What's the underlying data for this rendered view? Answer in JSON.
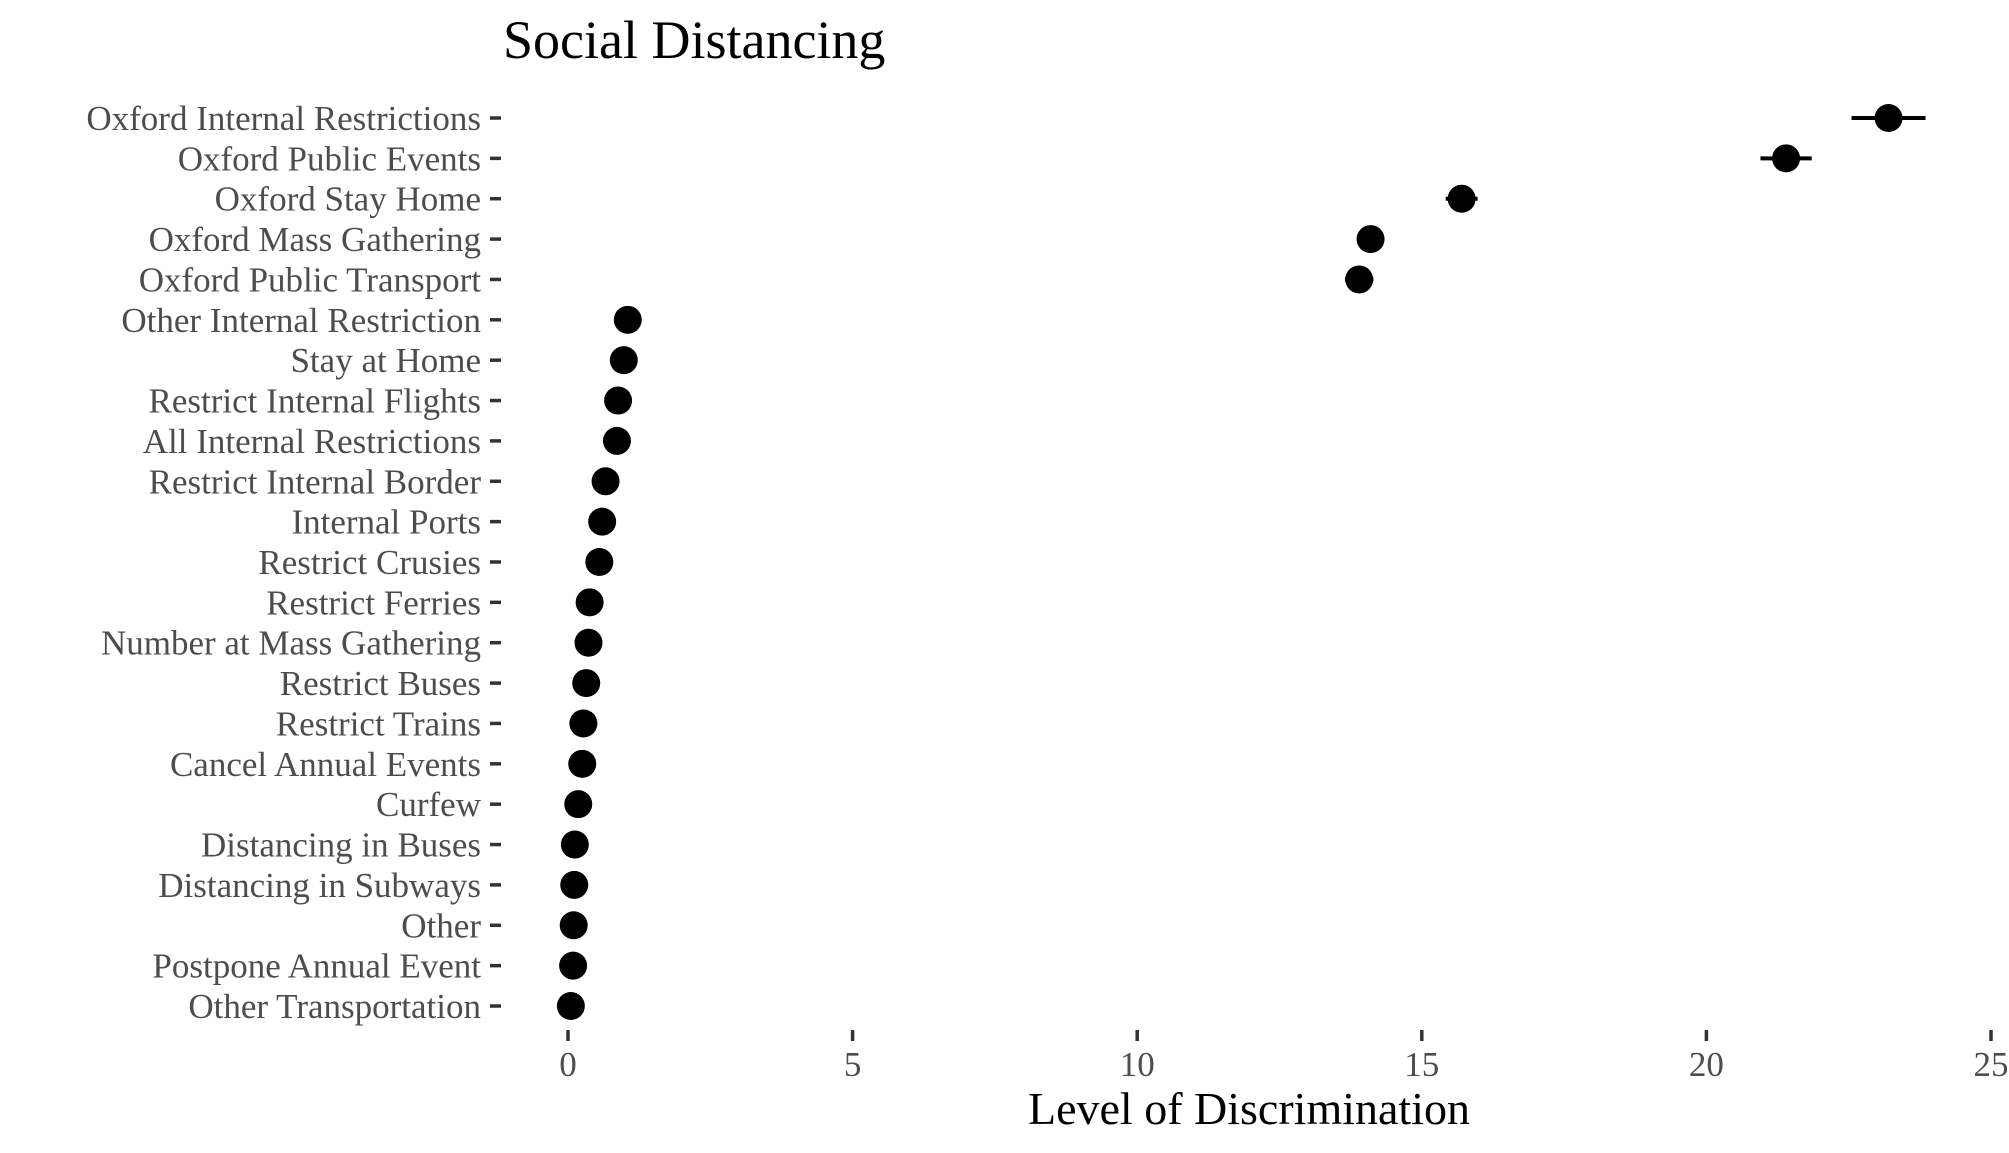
{
  "chart_data": {
    "type": "scatter",
    "title": "Social Distancing",
    "xlabel": "Level of Discrimination",
    "ylabel": "",
    "xlim": [
      0,
      25
    ],
    "x_ticks": [
      0,
      5,
      10,
      15,
      20,
      25
    ],
    "grid": false,
    "legend": "none",
    "colors": {
      "point": "#000000",
      "tick": "#333333",
      "tick_label": "#4d4d4d",
      "title": "#000000"
    },
    "categories": [
      "Oxford Internal Restrictions",
      "Oxford Public Events",
      "Oxford Stay Home",
      "Oxford Mass Gathering",
      "Oxford Public Transport",
      "Other Internal Restriction",
      "Stay at Home",
      "Restrict Internal Flights",
      "All Internal Restrictions",
      "Restrict Internal Border",
      "Internal Ports",
      "Restrict Crusies",
      "Restrict Ferries",
      "Number at Mass Gathering",
      "Restrict Buses",
      "Restrict Trains",
      "Cancel Annual Events",
      "Curfew",
      "Distancing in Buses",
      "Distancing in Subways",
      "Other",
      "Postpone Annual Event",
      "Other Transportation"
    ],
    "values": [
      23.2,
      21.4,
      15.7,
      14.1,
      13.9,
      1.05,
      0.98,
      0.88,
      0.86,
      0.66,
      0.6,
      0.55,
      0.38,
      0.36,
      0.32,
      0.27,
      0.25,
      0.18,
      0.12,
      0.11,
      0.1,
      0.09,
      0.05
    ],
    "ci_low": [
      22.55,
      20.95,
      15.42,
      13.95,
      13.65,
      1.05,
      0.98,
      0.88,
      0.86,
      0.66,
      0.6,
      0.55,
      0.38,
      0.36,
      0.32,
      0.27,
      0.25,
      0.18,
      0.12,
      0.11,
      0.1,
      0.09,
      0.05
    ],
    "ci_high": [
      23.85,
      21.85,
      15.98,
      14.25,
      14.15,
      1.05,
      0.98,
      0.88,
      0.86,
      0.66,
      0.6,
      0.55,
      0.38,
      0.36,
      0.32,
      0.27,
      0.25,
      0.18,
      0.12,
      0.11,
      0.1,
      0.09,
      0.05
    ]
  }
}
